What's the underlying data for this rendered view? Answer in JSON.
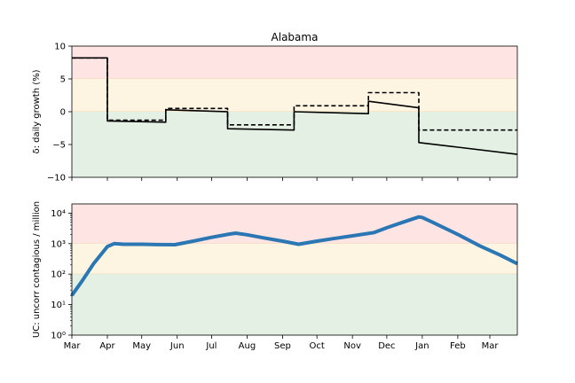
{
  "chart_data": [
    {
      "type": "line",
      "title": "Alabama",
      "ylabel": "δ: daily growth (%)",
      "ylim": [
        -10,
        10
      ],
      "yticks": [
        10,
        5,
        0,
        -5,
        -10
      ],
      "ytick_labels": [
        "10",
        "5",
        "0",
        "−5",
        "−10"
      ],
      "xlim": [
        "2020-03-01",
        "2021-03-25"
      ],
      "grid": false,
      "bands": [
        {
          "from": 5,
          "to": 10,
          "color": "#ffe4e4"
        },
        {
          "from": 0,
          "to": 5,
          "color": "#fdf5e2"
        },
        {
          "from": -10,
          "to": 0,
          "color": "#e4f0e3"
        }
      ],
      "series": [
        {
          "style": "solid",
          "color": "#000000",
          "points": [
            [
              "2020-03-01",
              8.2
            ],
            [
              "2020-04-01",
              8.2
            ],
            [
              "2020-04-01",
              -1.4
            ],
            [
              "2020-05-22",
              -1.6
            ],
            [
              "2020-05-22",
              0.3
            ],
            [
              "2020-07-15",
              0.0
            ],
            [
              "2020-07-15",
              -2.6
            ],
            [
              "2020-09-11",
              -2.8
            ],
            [
              "2020-09-11",
              0.0
            ],
            [
              "2020-11-15",
              -0.3
            ],
            [
              "2020-11-15",
              1.6
            ],
            [
              "2020-12-29",
              0.6
            ],
            [
              "2020-12-29",
              -4.7
            ],
            [
              "2021-02-01",
              -5.4
            ],
            [
              "2021-03-25",
              -6.5
            ]
          ]
        },
        {
          "style": "dashed",
          "color": "#000000",
          "points": [
            [
              "2020-03-01",
              8.2
            ],
            [
              "2020-04-01",
              8.2
            ],
            [
              "2020-04-01",
              -1.3
            ],
            [
              "2020-05-22",
              -1.3
            ],
            [
              "2020-05-22",
              0.5
            ],
            [
              "2020-07-15",
              0.5
            ],
            [
              "2020-07-15",
              -2.0
            ],
            [
              "2020-09-11",
              -2.0
            ],
            [
              "2020-09-11",
              0.9
            ],
            [
              "2020-11-15",
              0.9
            ],
            [
              "2020-11-15",
              2.9
            ],
            [
              "2020-12-29",
              2.9
            ],
            [
              "2020-12-29",
              -2.8
            ],
            [
              "2021-03-25",
              -2.8
            ]
          ]
        }
      ]
    },
    {
      "type": "line",
      "ylabel": "UC: uncorr contagious / million",
      "yscale": "log",
      "ylim": [
        1,
        20000
      ],
      "yticks": [
        1,
        10,
        100,
        1000,
        10000
      ],
      "ytick_labels": [
        "10⁰",
        "10¹",
        "10²",
        "10³",
        "10⁴"
      ],
      "xlim": [
        "2020-03-01",
        "2021-03-25"
      ],
      "xtick_dates": [
        "2020-03-01",
        "2020-04-01",
        "2020-05-01",
        "2020-06-01",
        "2020-07-01",
        "2020-08-01",
        "2020-09-01",
        "2020-10-01",
        "2020-11-01",
        "2020-12-01",
        "2021-01-01",
        "2021-02-01",
        "2021-03-01"
      ],
      "xtick_labels": [
        "Mar",
        "Apr",
        "May",
        "Jun",
        "Jul",
        "Aug",
        "Sep",
        "Oct",
        "Nov",
        "Dec",
        "Jan",
        "Feb",
        "Mar"
      ],
      "grid": false,
      "bands": [
        {
          "from": 1000,
          "to": 20000,
          "color": "#ffe4e4"
        },
        {
          "from": 100,
          "to": 1000,
          "color": "#fdf5e2"
        },
        {
          "from": 1,
          "to": 100,
          "color": "#e4f0e3"
        }
      ],
      "series": [
        {
          "style": "solid",
          "color": "#2a77b4",
          "points": [
            [
              "2020-03-01",
              20
            ],
            [
              "2020-03-10",
              60
            ],
            [
              "2020-03-20",
              220
            ],
            [
              "2020-04-01",
              800
            ],
            [
              "2020-04-07",
              1000
            ],
            [
              "2020-04-15",
              950
            ],
            [
              "2020-05-01",
              950
            ],
            [
              "2020-05-15",
              930
            ],
            [
              "2020-05-30",
              920
            ],
            [
              "2020-06-15",
              1200
            ],
            [
              "2020-07-01",
              1600
            ],
            [
              "2020-07-15",
              2000
            ],
            [
              "2020-07-22",
              2200
            ],
            [
              "2020-08-01",
              1950
            ],
            [
              "2020-08-15",
              1550
            ],
            [
              "2020-09-01",
              1200
            ],
            [
              "2020-09-15",
              950
            ],
            [
              "2020-10-01",
              1200
            ],
            [
              "2020-10-15",
              1450
            ],
            [
              "2020-11-01",
              1800
            ],
            [
              "2020-11-20",
              2300
            ],
            [
              "2020-12-01",
              3300
            ],
            [
              "2020-12-15",
              5000
            ],
            [
              "2020-12-29",
              7500
            ],
            [
              "2021-01-01",
              7200
            ],
            [
              "2021-01-10",
              5000
            ],
            [
              "2021-02-01",
              2000
            ],
            [
              "2021-02-20",
              850
            ],
            [
              "2021-03-10",
              420
            ],
            [
              "2021-03-25",
              220
            ]
          ]
        }
      ]
    }
  ]
}
